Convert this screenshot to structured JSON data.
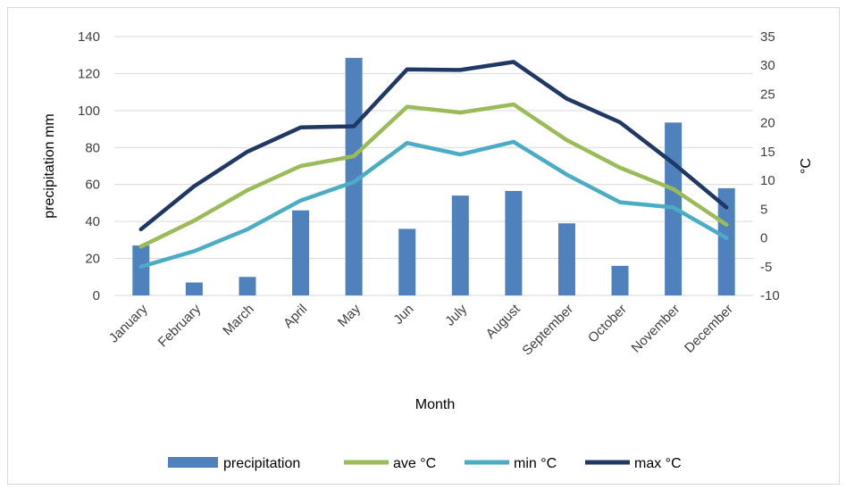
{
  "chart_data": {
    "type": "bar",
    "categories": [
      "January",
      "February",
      "March",
      "April",
      "May",
      "Jun",
      "July",
      "August",
      "September",
      "October",
      "November",
      "December"
    ],
    "series": [
      {
        "name": "precipitation",
        "type": "bar",
        "axis": "left",
        "color": "#4f81bd",
        "values": [
          27,
          7,
          10,
          46,
          128.5,
          36,
          54,
          56.5,
          39,
          16,
          93.5,
          58
        ]
      },
      {
        "name": "ave °C",
        "type": "line",
        "axis": "right",
        "color": "#9bbb59",
        "values": [
          -1.5,
          3,
          8.3,
          12.5,
          14.2,
          22.8,
          21.8,
          23.2,
          17,
          12.2,
          8.5,
          2.3
        ]
      },
      {
        "name": "min °C",
        "type": "line",
        "axis": "right",
        "color": "#4bacc6",
        "values": [
          -5,
          -2.3,
          1.5,
          6.5,
          9.7,
          16.5,
          14.5,
          16.7,
          11,
          6.2,
          5.3,
          0
        ]
      },
      {
        "name": "max °C",
        "type": "line",
        "axis": "right",
        "color": "#1f3864",
        "values": [
          1.5,
          9,
          15,
          19.2,
          19.4,
          29.3,
          29.2,
          30.6,
          24.2,
          20.1,
          13,
          5.3
        ]
      }
    ],
    "ylabel": "precipitation mm",
    "y2label": "°C",
    "xlabel": "Month",
    "ylim": [
      0,
      140
    ],
    "yticks": [
      "0",
      "20",
      "40",
      "60",
      "80",
      "100",
      "120",
      "140"
    ],
    "y2lim": [
      -10,
      35
    ],
    "y2ticks": [
      "-10",
      "-5",
      "0",
      "5",
      "10",
      "15",
      "20",
      "25",
      "30",
      "35"
    ],
    "grid": true,
    "legend": "bottom"
  }
}
